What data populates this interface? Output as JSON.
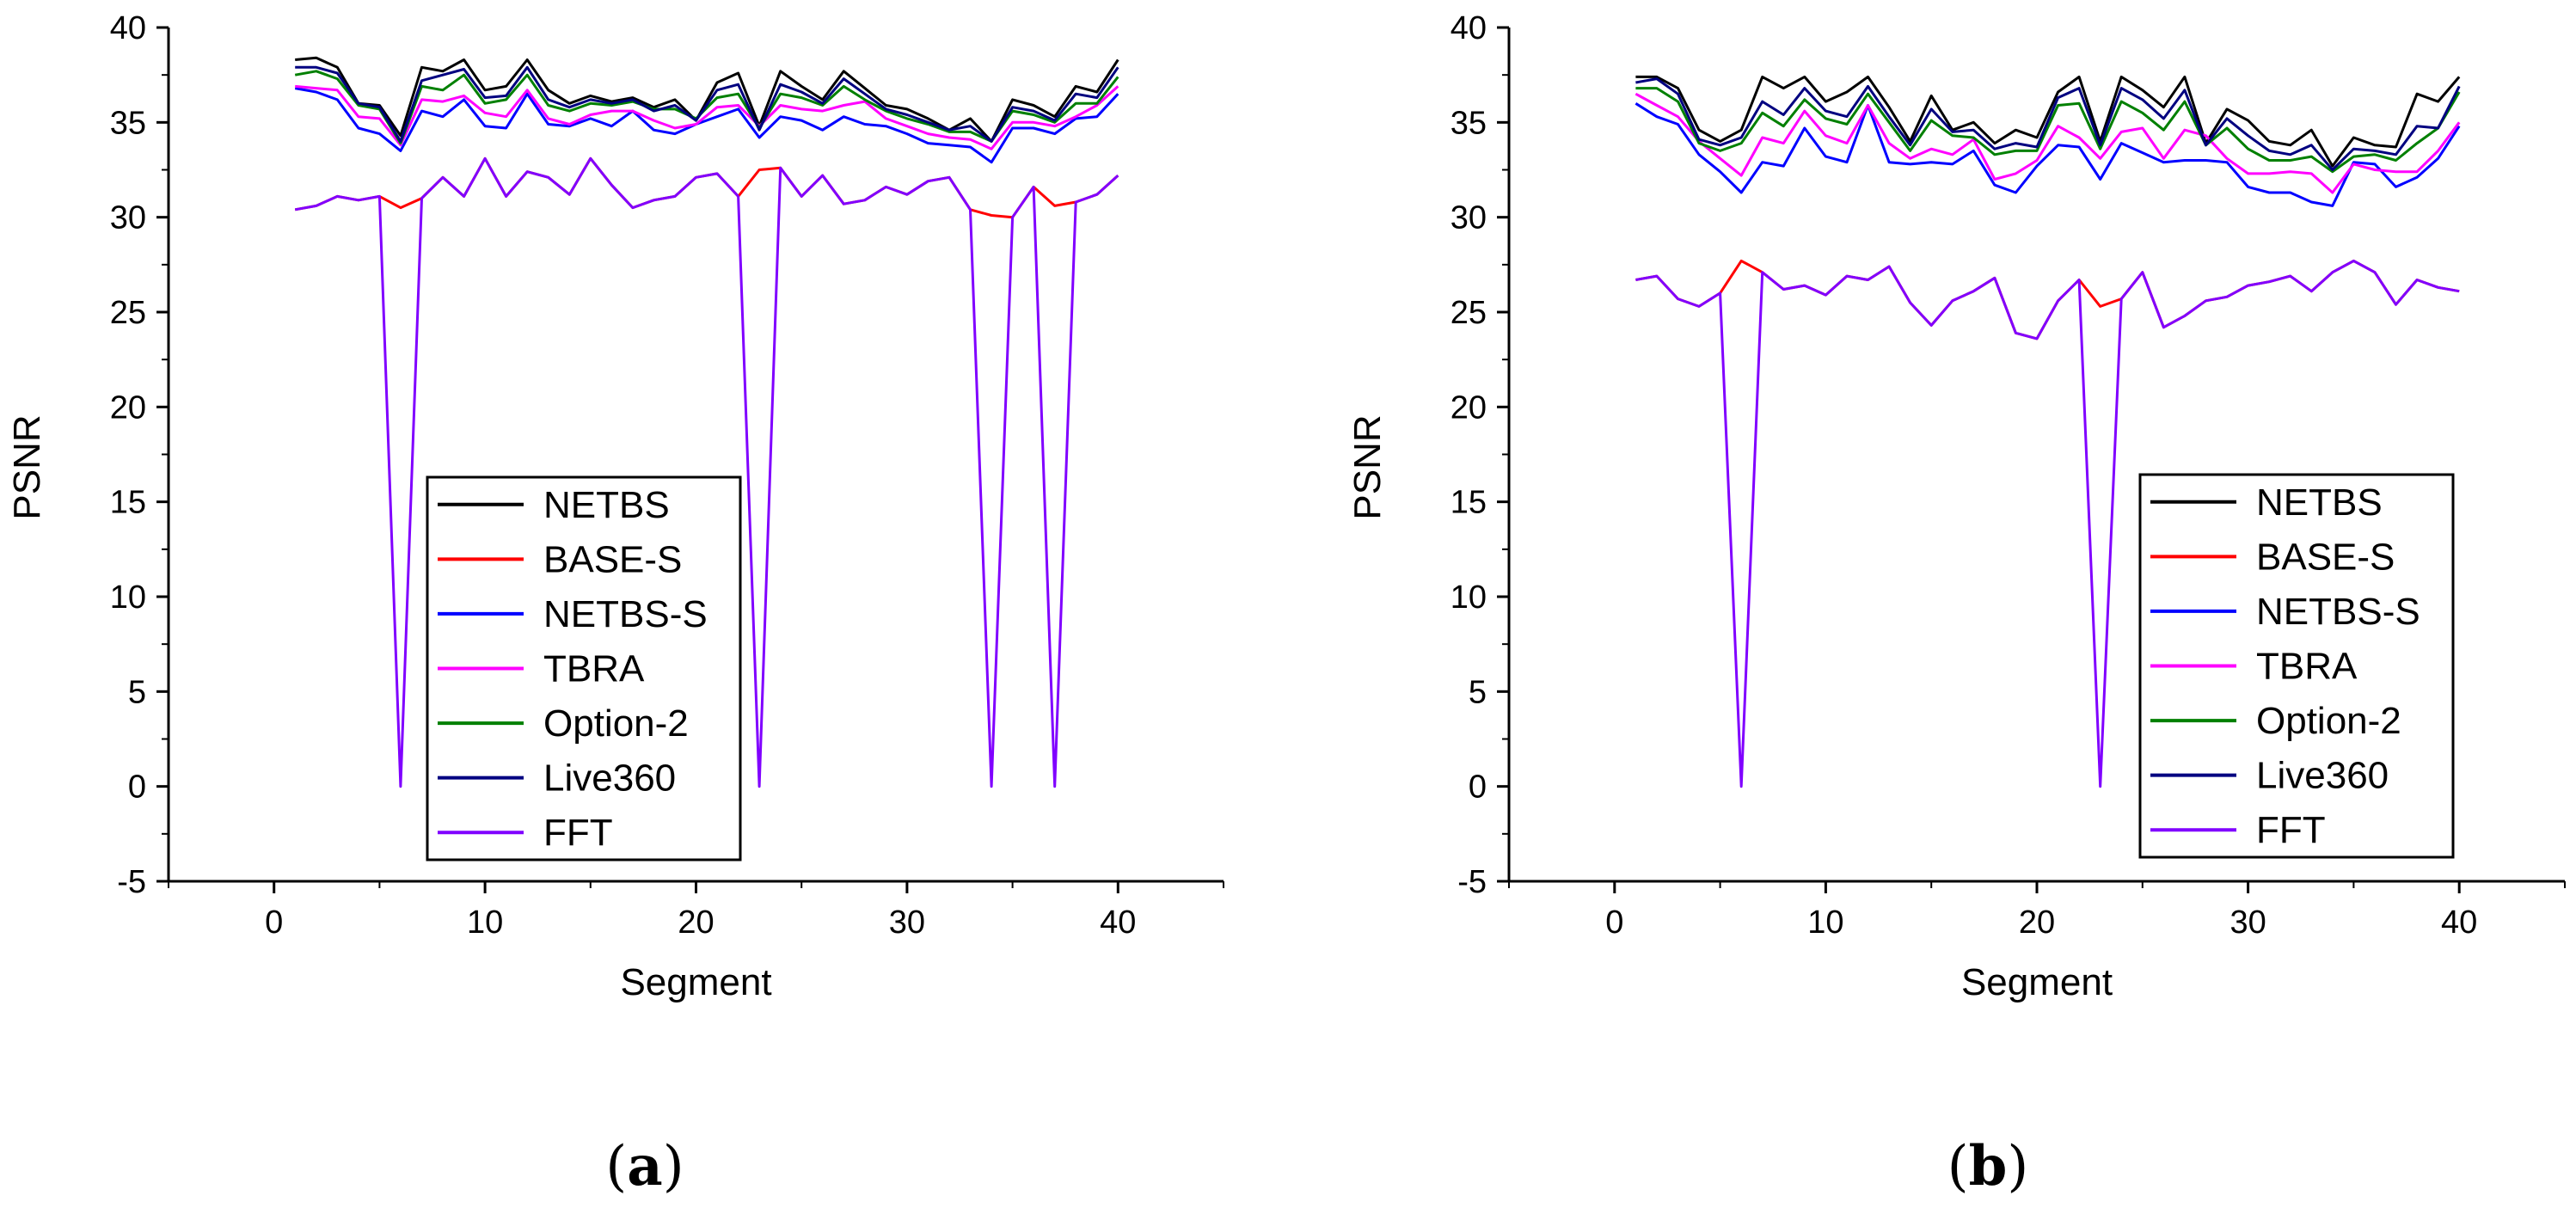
{
  "figure": {
    "panels": [
      {
        "id": "a",
        "caption_open": "(",
        "caption_letter": "a",
        "caption_close": ")"
      },
      {
        "id": "b",
        "caption_open": "(",
        "caption_letter": "b",
        "caption_close": ")"
      }
    ]
  },
  "chart_data": [
    {
      "type": "line",
      "title": "",
      "panel": "a",
      "xlabel": "Segment",
      "ylabel": "PSNR",
      "xlim": [
        -5,
        45
      ],
      "ylim": [
        -5,
        40
      ],
      "xticks": [
        0,
        10,
        20,
        30,
        40
      ],
      "yticks": [
        -5,
        0,
        5,
        10,
        15,
        20,
        25,
        30,
        35,
        40
      ],
      "grid": false,
      "legend_position": "lower-center",
      "x": [
        1,
        2,
        3,
        4,
        5,
        6,
        7,
        8,
        9,
        10,
        11,
        12,
        13,
        14,
        15,
        16,
        17,
        18,
        19,
        20,
        21,
        22,
        23,
        24,
        25,
        26,
        27,
        28,
        29,
        30,
        31,
        32,
        33,
        34,
        35,
        36,
        37,
        38,
        39,
        40
      ],
      "series": [
        {
          "name": "NETBS",
          "color": "#000000",
          "values": [
            38.3,
            38.4,
            37.9,
            36.0,
            35.9,
            34.3,
            37.9,
            37.7,
            38.3,
            36.7,
            36.9,
            38.3,
            36.7,
            36.0,
            36.4,
            36.1,
            36.3,
            35.8,
            36.2,
            35.1,
            37.1,
            37.6,
            34.8,
            37.7,
            36.9,
            36.2,
            37.7,
            36.8,
            35.9,
            35.7,
            35.2,
            34.6,
            35.2,
            34.0,
            36.2,
            35.9,
            35.3,
            36.9,
            36.6,
            38.3
          ]
        },
        {
          "name": "BASE-S",
          "color": "#ff0000",
          "values": [
            30.4,
            30.6,
            31.1,
            30.9,
            31.1,
            30.5,
            31.0,
            32.1,
            31.1,
            33.1,
            31.1,
            32.4,
            32.1,
            31.2,
            33.1,
            31.7,
            30.5,
            30.9,
            31.1,
            32.1,
            32.3,
            31.1,
            32.5,
            32.6,
            31.1,
            32.2,
            30.7,
            30.9,
            31.6,
            31.2,
            31.9,
            32.1,
            30.4,
            30.1,
            30.0,
            31.6,
            30.6,
            30.8,
            31.2,
            32.2
          ]
        },
        {
          "name": "NETBS-S",
          "color": "#0000ff",
          "values": [
            36.8,
            36.6,
            36.2,
            34.7,
            34.4,
            33.5,
            35.6,
            35.3,
            36.2,
            34.8,
            34.7,
            36.5,
            34.9,
            34.8,
            35.2,
            34.8,
            35.6,
            34.6,
            34.4,
            34.9,
            35.3,
            35.7,
            34.2,
            35.3,
            35.1,
            34.6,
            35.3,
            34.9,
            34.8,
            34.4,
            33.9,
            33.8,
            33.7,
            32.9,
            34.7,
            34.7,
            34.4,
            35.2,
            35.3,
            36.5
          ]
        },
        {
          "name": "TBRA",
          "color": "#ff00ff",
          "values": [
            36.9,
            36.8,
            36.7,
            35.3,
            35.2,
            33.8,
            36.2,
            36.1,
            36.4,
            35.5,
            35.3,
            36.7,
            35.2,
            34.9,
            35.4,
            35.6,
            35.6,
            35.1,
            34.7,
            34.9,
            35.8,
            35.9,
            34.8,
            35.9,
            35.7,
            35.6,
            35.9,
            36.1,
            35.2,
            34.8,
            34.4,
            34.2,
            34.1,
            33.6,
            35.0,
            35.0,
            34.8,
            35.3,
            35.9,
            36.9
          ]
        },
        {
          "name": "Option-2",
          "color": "#008000",
          "values": [
            37.5,
            37.7,
            37.3,
            35.9,
            35.7,
            33.9,
            36.9,
            36.7,
            37.5,
            36.0,
            36.2,
            37.5,
            35.9,
            35.6,
            36.0,
            35.9,
            36.1,
            35.7,
            35.7,
            35.2,
            36.3,
            36.5,
            34.7,
            36.5,
            36.3,
            35.9,
            36.9,
            36.2,
            35.6,
            35.2,
            34.9,
            34.5,
            34.5,
            34.0,
            35.6,
            35.4,
            35.0,
            36.0,
            36.0,
            37.4
          ]
        },
        {
          "name": "Live360",
          "color": "#000080",
          "values": [
            37.9,
            37.9,
            37.6,
            36.0,
            35.8,
            34.0,
            37.2,
            37.5,
            37.8,
            36.3,
            36.4,
            37.9,
            36.2,
            35.8,
            36.2,
            36.0,
            36.2,
            35.6,
            35.9,
            35.1,
            36.7,
            37.0,
            34.6,
            37.0,
            36.6,
            36.0,
            37.3,
            36.5,
            35.7,
            35.4,
            35.0,
            34.6,
            34.8,
            34.0,
            35.8,
            35.6,
            35.1,
            36.5,
            36.3,
            37.9
          ]
        },
        {
          "name": "FFT",
          "color": "#8000ff",
          "values": [
            30.4,
            30.6,
            31.1,
            30.9,
            31.1,
            0.0,
            31.0,
            32.1,
            31.1,
            33.1,
            31.1,
            32.4,
            32.1,
            31.2,
            33.1,
            31.7,
            30.5,
            30.9,
            31.1,
            32.1,
            32.3,
            31.1,
            0.0,
            32.6,
            31.1,
            32.2,
            30.7,
            30.9,
            31.6,
            31.2,
            31.9,
            32.1,
            30.4,
            0.0,
            30.0,
            31.6,
            0.0,
            30.8,
            31.2,
            32.2
          ]
        }
      ]
    },
    {
      "type": "line",
      "title": "",
      "panel": "b",
      "xlabel": "Segment",
      "ylabel": "PSNR",
      "xlim": [
        -5,
        45
      ],
      "ylim": [
        -5,
        40
      ],
      "xticks": [
        0,
        10,
        20,
        30,
        40
      ],
      "yticks": [
        -5,
        0,
        5,
        10,
        15,
        20,
        25,
        30,
        35,
        40
      ],
      "grid": false,
      "legend_position": "lower-right",
      "x": [
        1,
        2,
        3,
        4,
        5,
        6,
        7,
        8,
        9,
        10,
        11,
        12,
        13,
        14,
        15,
        16,
        17,
        18,
        19,
        20,
        21,
        22,
        23,
        24,
        25,
        26,
        27,
        28,
        29,
        30,
        31,
        32,
        33,
        34,
        35,
        36,
        37,
        38,
        39,
        40
      ],
      "series": [
        {
          "name": "NETBS",
          "color": "#000000",
          "values": [
            37.4,
            37.4,
            36.8,
            34.6,
            34.0,
            34.6,
            37.4,
            36.8,
            37.4,
            36.1,
            36.6,
            37.4,
            35.8,
            34.0,
            36.4,
            34.6,
            35.0,
            33.9,
            34.6,
            34.2,
            36.6,
            37.4,
            34.0,
            37.4,
            36.7,
            35.8,
            37.4,
            33.9,
            35.7,
            35.1,
            34.0,
            33.8,
            34.6,
            32.7,
            34.2,
            33.8,
            33.7,
            36.5,
            36.1,
            37.4
          ]
        },
        {
          "name": "BASE-S",
          "color": "#ff0000",
          "values": [
            26.7,
            26.9,
            25.7,
            25.3,
            26.0,
            27.7,
            27.1,
            26.2,
            26.4,
            25.9,
            26.9,
            26.7,
            27.4,
            25.5,
            24.3,
            25.6,
            26.1,
            26.8,
            23.9,
            23.6,
            25.6,
            26.7,
            25.3,
            25.7,
            27.1,
            24.2,
            24.8,
            25.6,
            25.8,
            26.4,
            26.6,
            26.9,
            26.1,
            27.1,
            27.7,
            27.1,
            25.4,
            26.7,
            26.3,
            26.1
          ]
        },
        {
          "name": "NETBS-S",
          "color": "#0000ff",
          "values": [
            36.0,
            35.3,
            34.9,
            33.3,
            32.4,
            31.3,
            32.9,
            32.7,
            34.7,
            33.2,
            32.9,
            35.9,
            32.9,
            32.8,
            32.9,
            32.8,
            33.5,
            31.7,
            31.3,
            32.7,
            33.8,
            33.7,
            32.0,
            33.9,
            33.4,
            32.9,
            33.0,
            33.0,
            32.9,
            31.6,
            31.3,
            31.3,
            30.8,
            30.6,
            32.9,
            32.8,
            31.6,
            32.1,
            33.1,
            34.8
          ]
        },
        {
          "name": "TBRA",
          "color": "#ff00ff",
          "values": [
            36.5,
            35.9,
            35.3,
            34.0,
            33.1,
            32.2,
            34.2,
            33.9,
            35.6,
            34.3,
            33.9,
            35.9,
            33.9,
            33.1,
            33.6,
            33.3,
            34.1,
            32.0,
            32.3,
            33.0,
            34.8,
            34.2,
            33.1,
            34.5,
            34.7,
            33.1,
            34.6,
            34.3,
            33.1,
            32.3,
            32.3,
            32.4,
            32.3,
            31.3,
            32.8,
            32.5,
            32.4,
            32.4,
            33.5,
            35.0
          ]
        },
        {
          "name": "Option-2",
          "color": "#008000",
          "values": [
            36.8,
            36.8,
            36.1,
            33.9,
            33.5,
            33.9,
            35.5,
            34.8,
            36.2,
            35.2,
            34.9,
            36.5,
            35.0,
            33.5,
            35.1,
            34.3,
            34.2,
            33.3,
            33.5,
            33.5,
            35.9,
            36.0,
            33.6,
            36.1,
            35.5,
            34.6,
            36.1,
            33.8,
            34.7,
            33.6,
            33.0,
            33.0,
            33.2,
            32.4,
            33.2,
            33.3,
            33.0,
            33.9,
            34.7,
            36.6
          ]
        },
        {
          "name": "Live360",
          "color": "#000080",
          "values": [
            37.1,
            37.3,
            36.5,
            34.1,
            33.8,
            34.2,
            36.1,
            35.4,
            36.8,
            35.6,
            35.3,
            36.9,
            35.3,
            33.8,
            35.7,
            34.5,
            34.6,
            33.6,
            33.9,
            33.7,
            36.3,
            36.8,
            33.8,
            36.8,
            36.2,
            35.2,
            36.7,
            33.8,
            35.2,
            34.3,
            33.5,
            33.3,
            33.8,
            32.5,
            33.6,
            33.5,
            33.3,
            34.8,
            34.7,
            36.9
          ]
        },
        {
          "name": "FFT",
          "color": "#8000ff",
          "values": [
            26.7,
            26.9,
            25.7,
            25.3,
            26.0,
            0.0,
            27.1,
            26.2,
            26.4,
            25.9,
            26.9,
            26.7,
            27.4,
            25.5,
            24.3,
            25.6,
            26.1,
            26.8,
            23.9,
            23.6,
            25.6,
            26.7,
            0.0,
            25.7,
            27.1,
            24.2,
            24.8,
            25.6,
            25.8,
            26.4,
            26.6,
            26.9,
            26.1,
            27.1,
            27.7,
            27.1,
            25.4,
            26.7,
            26.3,
            26.1
          ]
        }
      ]
    }
  ]
}
